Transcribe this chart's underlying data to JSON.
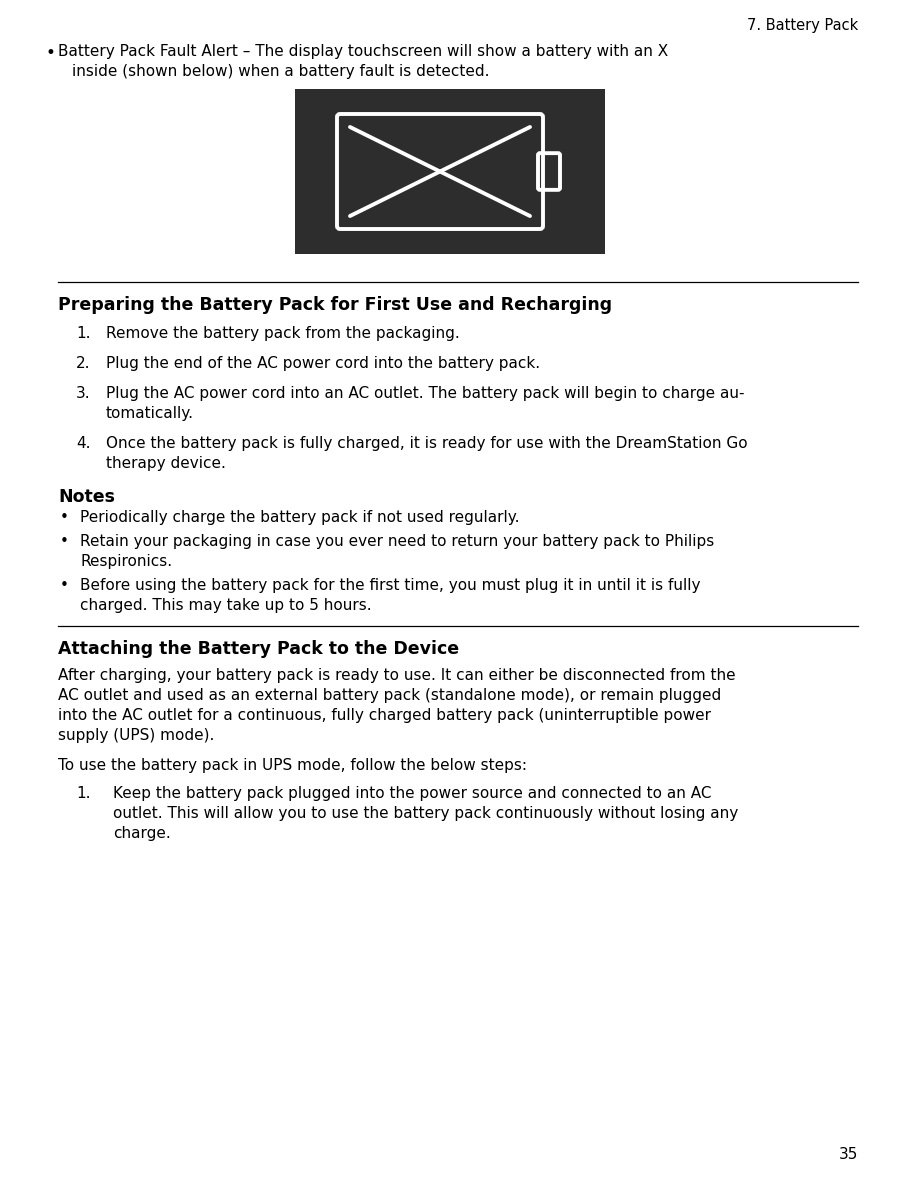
{
  "background_color": "#ffffff",
  "page_number": "35",
  "header_text": "7. Battery Pack",
  "header_fontsize": 10,
  "body_fontsize": 11.5,
  "bold_fontsize": 12,
  "image_bg": "#2d2d2d",
  "section1_title": "Preparing the Battery Pack for First Use and Recharging",
  "section1_items": [
    "Remove the battery pack from the packaging.",
    "Plug the end of the AC power cord into the battery pack.",
    "Plug the AC power cord into an AC outlet. The battery pack will begin to charge au-\ntomatically.",
    "Once the battery pack is fully charged, it is ready for use with the DreamStation Go\ntherapy device."
  ],
  "notes_title": "Notes",
  "notes_items": [
    "Periodically charge the battery pack if not used regularly.",
    "Retain your packaging in case you ever need to return your battery pack to Philips\nRespironics.",
    "Before using the battery pack for the ﬁrst time, you must plug it in until it is fully\ncharged. This may take up to 5 hours."
  ],
  "section2_title": "Attaching the Battery Pack to the Device",
  "section2_para1_lines": [
    "After charging, your battery pack is ready to use. It can either be disconnected from the",
    "AC outlet and used as an external battery pack (standalone mode), or remain plugged",
    "into the AC outlet for a continuous, fully charged battery pack (uninterruptible power",
    "supply (UPS) mode)."
  ],
  "section2_para2": "To use the battery pack in UPS mode, follow the below steps:",
  "section2_items": [
    "Keep the battery pack plugged into the power source and connected to an AC\noutlet. This will allow you to use the battery pack continuously without losing any\ncharge."
  ],
  "bullet_line1": "Battery Pack Fault Alert – The display touchscreen will show a battery with an X",
  "bullet_line2": "inside (shown below) when a battery fault is detected."
}
